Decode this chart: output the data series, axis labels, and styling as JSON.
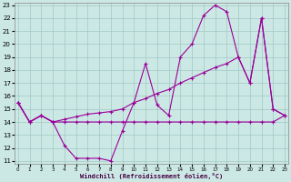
{
  "xlabel": "Windchill (Refroidissement éolien,°C)",
  "xlim": [
    0,
    23
  ],
  "ylim": [
    11,
    23
  ],
  "bg_color": "#cce8e4",
  "grid_color": "#a0c8c4",
  "line_color": "#990099",
  "line1_x": [
    0,
    1,
    2,
    3,
    4,
    5,
    6,
    7,
    8,
    9,
    10,
    11,
    12,
    13,
    14,
    15,
    16,
    17,
    18,
    19,
    20,
    21,
    22,
    23
  ],
  "line1_y": [
    15.5,
    14.0,
    14.5,
    14.0,
    12.2,
    11.2,
    11.2,
    11.2,
    11.0,
    13.3,
    15.5,
    18.5,
    15.3,
    14.5,
    19.0,
    20.0,
    22.2,
    23.0,
    22.5,
    19.0,
    17.0,
    22.0,
    15.0,
    14.5
  ],
  "line2_x": [
    0,
    1,
    2,
    3,
    4,
    5,
    6,
    7,
    8,
    9,
    10,
    11,
    12,
    13,
    14,
    15,
    16,
    17,
    18,
    19,
    20,
    21,
    22,
    23
  ],
  "line2_y": [
    15.5,
    14.0,
    14.5,
    14.0,
    14.0,
    14.0,
    14.0,
    14.0,
    14.0,
    14.0,
    14.0,
    14.0,
    14.0,
    14.0,
    14.0,
    14.0,
    14.0,
    14.0,
    14.0,
    14.0,
    14.0,
    14.0,
    14.0,
    14.5
  ],
  "line3_x": [
    0,
    1,
    2,
    3,
    4,
    5,
    6,
    7,
    8,
    9,
    10,
    11,
    12,
    13,
    14,
    15,
    16,
    17,
    18,
    19,
    20,
    21,
    22,
    23
  ],
  "line3_y": [
    15.5,
    14.0,
    14.5,
    14.0,
    14.2,
    14.4,
    14.6,
    14.7,
    14.8,
    15.0,
    15.5,
    15.8,
    16.2,
    16.5,
    17.0,
    17.4,
    17.8,
    18.2,
    18.5,
    19.0,
    17.0,
    22.0,
    15.0,
    14.5
  ],
  "xticks": [
    0,
    1,
    2,
    3,
    4,
    5,
    6,
    7,
    8,
    9,
    10,
    11,
    12,
    13,
    14,
    15,
    16,
    17,
    18,
    19,
    20,
    21,
    22,
    23
  ],
  "yticks": [
    11,
    12,
    13,
    14,
    15,
    16,
    17,
    18,
    19,
    20,
    21,
    22,
    23
  ]
}
